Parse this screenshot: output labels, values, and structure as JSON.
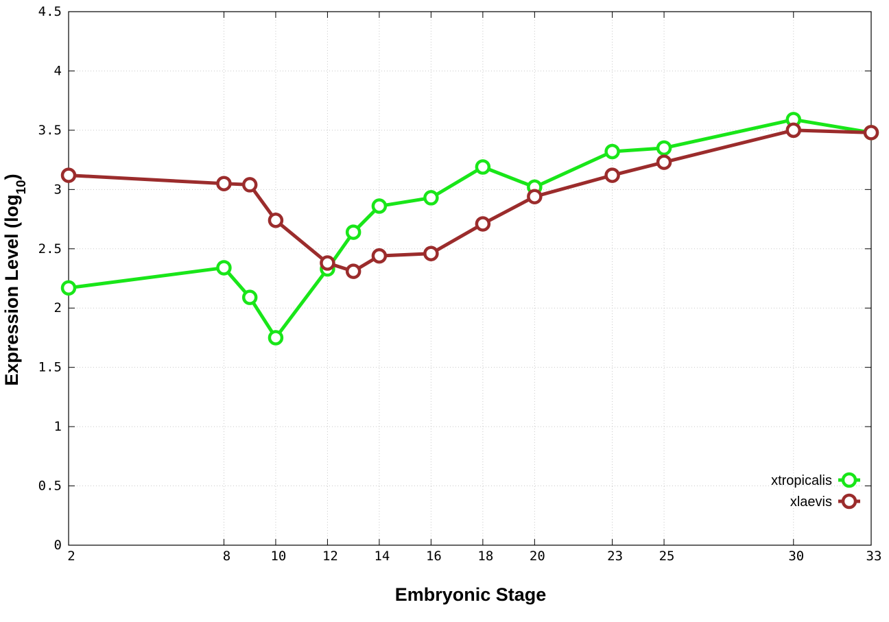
{
  "chart_data": {
    "type": "line",
    "title": "",
    "xlabel": "Embryonic Stage",
    "ylabel": "Expression Level",
    "ylabel_base": "(log",
    "ylabel_sub": "10",
    "ylabel_close": ")",
    "x": [
      2,
      8,
      9,
      10,
      12,
      13,
      14,
      16,
      18,
      20,
      23,
      25,
      30,
      33
    ],
    "x_tick_values": [
      2,
      8,
      10,
      12,
      14,
      16,
      18,
      20,
      23,
      25,
      30,
      33
    ],
    "x_tick_labels": [
      "2",
      "8",
      "10",
      "12",
      "14",
      "16",
      "18",
      "20",
      "23",
      "25",
      "30",
      "33"
    ],
    "xlim": [
      2,
      33
    ],
    "ylim": [
      0,
      4.5
    ],
    "y_ticks": [
      0,
      0.5,
      1,
      1.5,
      2,
      2.5,
      3,
      3.5,
      4,
      4.5
    ],
    "y_tick_labels": [
      "0",
      "0.5",
      "1",
      "1.5",
      "2",
      "2.5",
      "3",
      "3.5",
      "4",
      "4.5"
    ],
    "grid": true,
    "legend_position": "bottom-right",
    "series": [
      {
        "name": "xtropicalis",
        "color": "#19e619",
        "marker": "open-circle",
        "values": [
          2.17,
          2.34,
          2.09,
          1.75,
          2.33,
          2.64,
          2.86,
          2.93,
          3.19,
          3.02,
          3.32,
          3.35,
          3.59,
          3.48
        ]
      },
      {
        "name": "xlaevis",
        "color": "#9b2c2c",
        "marker": "open-circle",
        "values": [
          3.12,
          3.05,
          3.04,
          2.74,
          2.38,
          2.31,
          2.44,
          2.46,
          2.71,
          2.94,
          3.12,
          3.23,
          3.5,
          3.48
        ]
      }
    ]
  }
}
